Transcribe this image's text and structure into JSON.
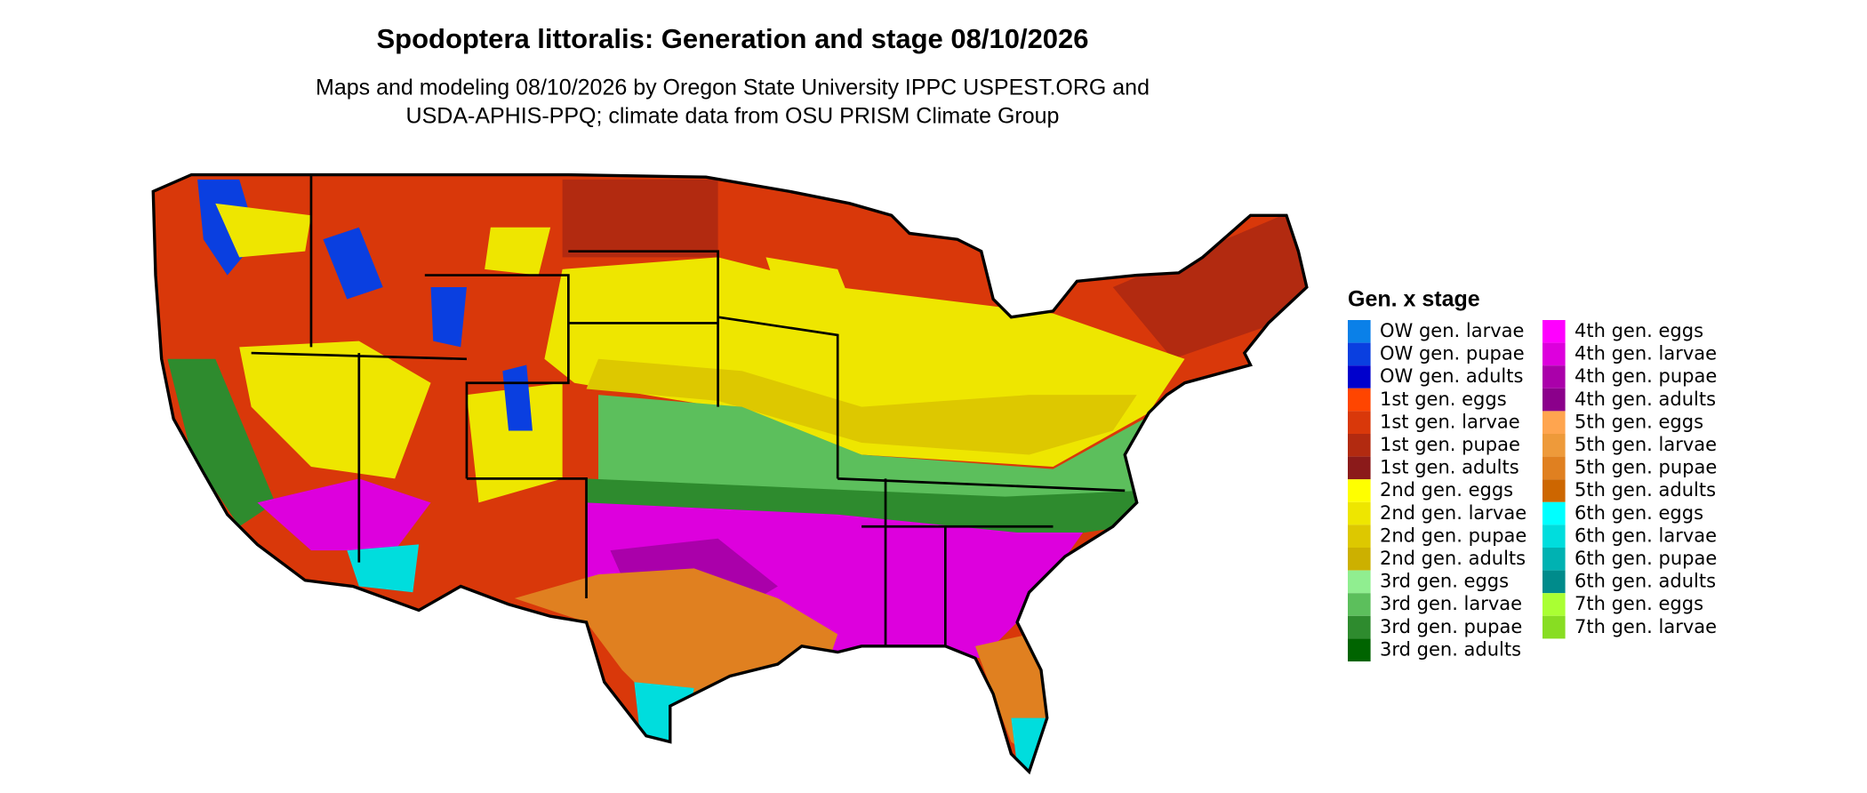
{
  "header": {
    "title": "Spodoptera littoralis: Generation and stage 08/10/2026",
    "subtitle_lines": [
      "Maps and modeling 08/10/2026 by Oregon State University IPPC USPEST.ORG and",
      "USDA-APHIS-PPQ; climate data from OSU PRISM Climate Group"
    ]
  },
  "legend": {
    "title": "Gen. x stage",
    "items": [
      {
        "label": "OW gen. larvae",
        "color": "#0a80e8"
      },
      {
        "label": "OW gen. pupae",
        "color": "#0a3fe0"
      },
      {
        "label": "OW gen. adults",
        "color": "#0000cc"
      },
      {
        "label": "1st gen. eggs",
        "color": "#ff4500"
      },
      {
        "label": "1st gen. larvae",
        "color": "#d9380a"
      },
      {
        "label": "1st gen. pupae",
        "color": "#b22a10"
      },
      {
        "label": "1st gen. adults",
        "color": "#8b1a1a"
      },
      {
        "label": "2nd gen. eggs",
        "color": "#ffff00"
      },
      {
        "label": "2nd gen. larvae",
        "color": "#eee600"
      },
      {
        "label": "2nd gen. pupae",
        "color": "#ddc800"
      },
      {
        "label": "2nd gen. adults",
        "color": "#ccb000"
      },
      {
        "label": "3rd gen. eggs",
        "color": "#90ee90"
      },
      {
        "label": "3rd gen. larvae",
        "color": "#5cbf5c"
      },
      {
        "label": "3rd gen. pupae",
        "color": "#2e8b2e"
      },
      {
        "label": "3rd gen. adults",
        "color": "#006400"
      },
      {
        "label": "4th gen. eggs",
        "color": "#ff00ff"
      },
      {
        "label": "4th gen. larvae",
        "color": "#dd00dd"
      },
      {
        "label": "4th gen. pupae",
        "color": "#aa00aa"
      },
      {
        "label": "4th gen. adults",
        "color": "#8b008b"
      },
      {
        "label": "5th gen. eggs",
        "color": "#ffa54f"
      },
      {
        "label": "5th gen. larvae",
        "color": "#ee9a3a"
      },
      {
        "label": "5th gen. pupae",
        "color": "#e08020"
      },
      {
        "label": "5th gen. adults",
        "color": "#cd6600"
      },
      {
        "label": "6th gen. eggs",
        "color": "#00ffff"
      },
      {
        "label": "6th gen. larvae",
        "color": "#00dddd"
      },
      {
        "label": "6th gen. pupae",
        "color": "#00b2b2"
      },
      {
        "label": "6th gen. adults",
        "color": "#008b8b"
      },
      {
        "label": "7th gen. eggs",
        "color": "#aaff33"
      },
      {
        "label": "7th gen. larvae",
        "color": "#88dd22"
      }
    ]
  }
}
